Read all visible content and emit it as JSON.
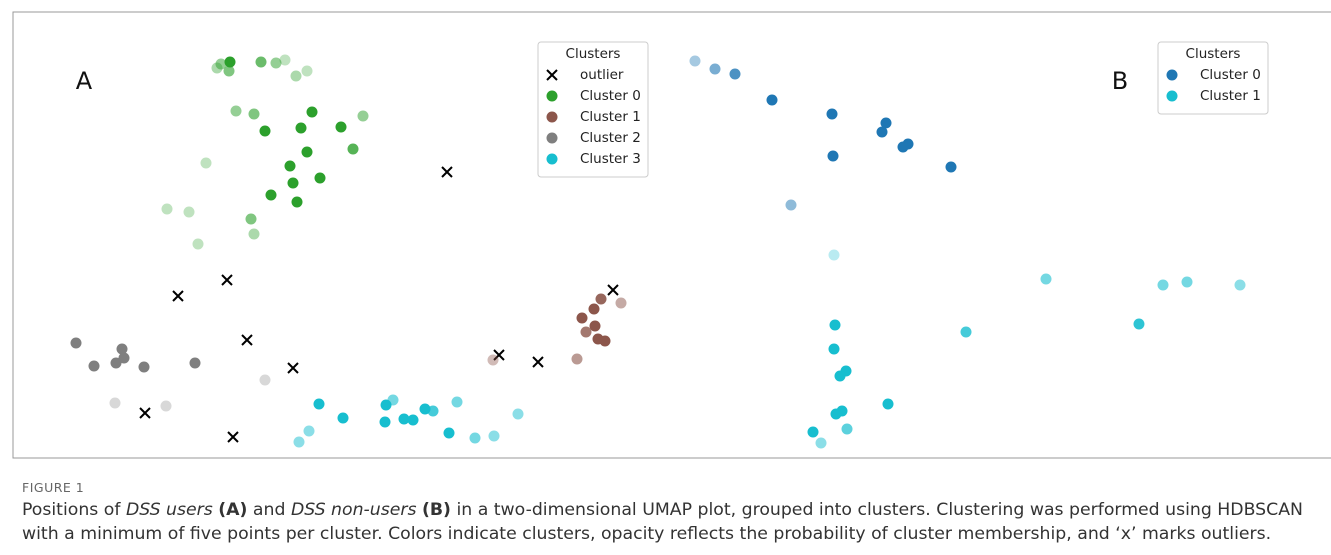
{
  "chart_data": [
    {
      "type": "scatter",
      "label": "A",
      "legend_title": "Clusters",
      "legend": "upper right",
      "xlim": [
        0,
        600
      ],
      "ylim": [
        0,
        420
      ],
      "series": [
        {
          "name": "outlier",
          "marker": "x",
          "color": "#000000",
          "x": [
            387,
            167,
            118,
            187,
            233,
            85,
            173,
            439,
            478,
            553
          ],
          "y": [
            283,
            175,
            159,
            115,
            87,
            42,
            18,
            100,
            93,
            165
          ]
        },
        {
          "name": "Cluster 0",
          "marker": "o",
          "color": "#2ca02c",
          "x": [
            157,
            161,
            170,
            169,
            201,
            216,
            225,
            236,
            247,
            176,
            194,
            252,
            303,
            205,
            241,
            281,
            247,
            293,
            230,
            260,
            146,
            233,
            211,
            237,
            107,
            129,
            191,
            194,
            138
          ],
          "y": [
            387,
            391,
            393,
            384,
            393,
            392,
            395,
            379,
            384,
            344,
            341,
            343,
            339,
            324,
            327,
            328,
            303,
            306,
            289,
            277,
            292,
            272,
            260,
            253,
            246,
            243,
            236,
            221,
            211
          ],
          "alpha": [
            0.4,
            0.5,
            1,
            0.6,
            0.7,
            0.5,
            0.3,
            0.4,
            0.3,
            0.5,
            0.6,
            1,
            0.5,
            1,
            1,
            1,
            1,
            0.8,
            1,
            1,
            0.3,
            1,
            1,
            1,
            0.3,
            0.3,
            0.6,
            0.4,
            0.3
          ]
        },
        {
          "name": "Cluster 1",
          "marker": "o",
          "color": "#8c564b",
          "x": [
            541,
            561,
            534,
            522,
            535,
            526,
            538,
            545,
            517,
            433
          ],
          "y": [
            156,
            152,
            146,
            137,
            129,
            123,
            116,
            114,
            96,
            95
          ],
          "alpha": [
            0.9,
            0.5,
            1,
            1,
            1,
            0.8,
            1,
            1,
            0.6,
            0.4
          ]
        },
        {
          "name": "Cluster 2",
          "marker": "o",
          "color": "#7f7f7f",
          "x": [
            16,
            62,
            64,
            56,
            34,
            84,
            135,
            205,
            55,
            106
          ],
          "y": [
            112,
            106,
            97,
            92,
            89,
            88,
            92,
            75,
            52,
            49
          ],
          "alpha": [
            1,
            1,
            1,
            1,
            1,
            1,
            1,
            0.3,
            0.3,
            0.3
          ]
        },
        {
          "name": "Cluster 3",
          "marker": "o",
          "color": "#17becf",
          "x": [
            259,
            283,
            333,
            326,
            325,
            344,
            353,
            365,
            373,
            397,
            458,
            389,
            415,
            434,
            249,
            239
          ],
          "y": [
            51,
            37,
            55,
            50,
            33,
            36,
            35,
            46,
            44,
            53,
            41,
            22,
            17,
            19,
            24,
            13
          ],
          "alpha": [
            1,
            1,
            0.6,
            1,
            1,
            1,
            1,
            1,
            0.8,
            0.6,
            0.5,
            1,
            0.6,
            0.5,
            0.5,
            0.5
          ]
        }
      ]
    },
    {
      "type": "scatter",
      "label": "B",
      "legend_title": "Clusters",
      "legend": "upper right",
      "xlim": [
        0,
        600
      ],
      "ylim": [
        0,
        420
      ],
      "series": [
        {
          "name": "Cluster 0",
          "marker": "o",
          "color": "#1f77b4",
          "x": [
            15,
            35,
            55,
            92,
            152,
            206,
            202,
            228,
            223,
            271,
            153,
            111
          ],
          "y": [
            394,
            386,
            381,
            355,
            341,
            332,
            323,
            311,
            308,
            288,
            299,
            250
          ],
          "alpha": [
            0.4,
            0.6,
            0.8,
            1,
            1,
            1,
            1,
            1,
            1,
            1,
            1,
            0.5
          ]
        },
        {
          "name": "Cluster 1",
          "marker": "o",
          "color": "#17becf",
          "x": [
            154,
            366,
            483,
            507,
            560,
            459,
            286,
            155,
            154,
            166,
            160,
            208,
            162,
            156,
            167,
            133,
            141
          ],
          "y": [
            200,
            176,
            170,
            173,
            170,
            131,
            123,
            130,
            106,
            84,
            79,
            51,
            44,
            41,
            26,
            23,
            12
          ],
          "alpha": [
            0.3,
            0.6,
            0.6,
            0.6,
            0.5,
            0.9,
            0.8,
            1,
            1,
            1,
            1,
            1,
            1,
            1,
            0.7,
            1,
            0.5
          ]
        }
      ]
    }
  ],
  "caption": {
    "label": "FIGURE 1",
    "text": [
      "Positions of ",
      "DSS users",
      " ",
      "(A)",
      " and ",
      "DSS non-users",
      " ",
      "(B)",
      " in a two-dimensional UMAP plot, grouped into clusters. Clustering was performed using HDBSCAN with a minimum of five points per cluster. Colors indicate clusters, opacity reflects the probability of cluster membership, and ‘x’ marks outliers."
    ]
  }
}
